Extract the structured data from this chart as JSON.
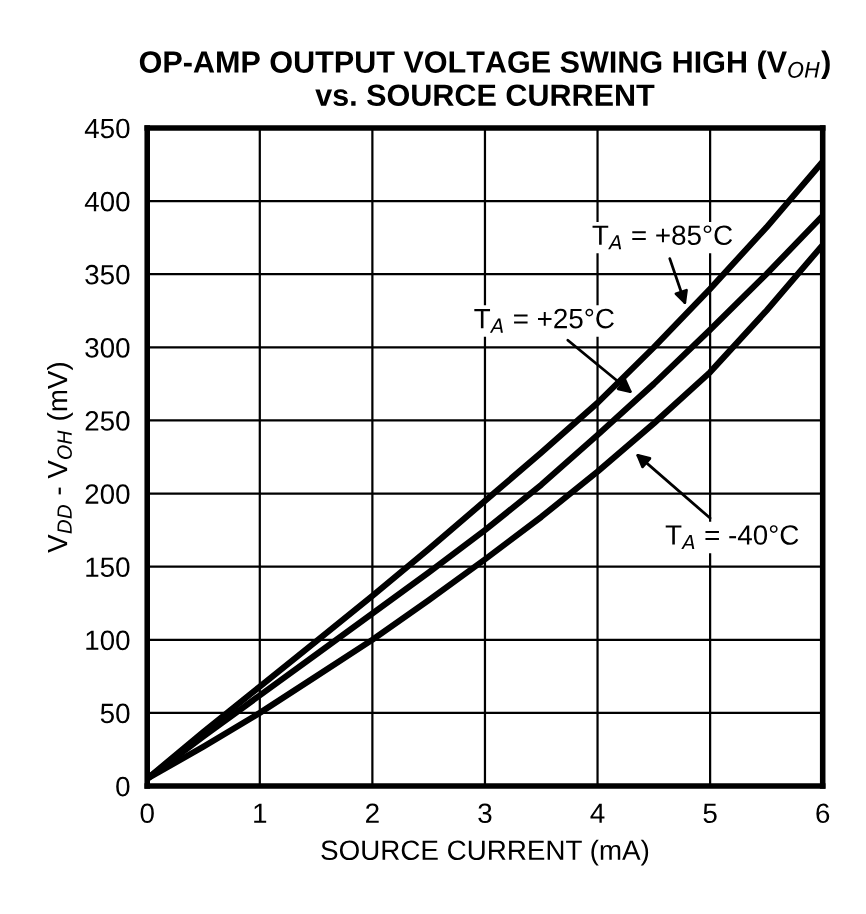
{
  "chart_data": {
    "type": "line",
    "title": "OP-AMP OUTPUT VOLTAGE SWING HIGH (V$_{OH}$)\nvs. SOURCE CURRENT",
    "xlabel": "SOURCE CURRENT (mA)",
    "ylabel": "V$_{DD}$ - V$_{OH}$ (mV)",
    "x": [
      0,
      0.5,
      1,
      1.5,
      2,
      2.5,
      3,
      3.5,
      4,
      4.5,
      5,
      5.5,
      6
    ],
    "series": [
      {
        "color": "#000000",
        "values": [
          5,
          37,
          68,
          99,
          130,
          162,
          195,
          228,
          262,
          300,
          340,
          382,
          427
        ]
      },
      {
        "color": "#000000",
        "values": [
          5,
          34,
          62,
          90,
          118,
          146,
          175,
          206,
          240,
          275,
          312,
          350,
          390
        ]
      },
      {
        "color": "#000000",
        "values": [
          5,
          27,
          50,
          75,
          100,
          127,
          155,
          184,
          215,
          248,
          283,
          325,
          370
        ]
      }
    ],
    "annotations": [
      {
        "text": "T$_{A}$ = +85°C",
        "x": 4.8,
        "y": 325
      },
      {
        "text": "T$_{A}$ = +25°C",
        "x": 4.35,
        "y": 266
      },
      {
        "text": "T$_{A}$ = -40°C",
        "x": 4.3,
        "y": 230
      }
    ],
    "xlim": [
      0,
      6
    ],
    "ylim": [
      0,
      450
    ],
    "xticks": [
      0,
      1,
      2,
      3,
      4,
      5,
      6
    ],
    "yticks": [
      0,
      50,
      100,
      150,
      200,
      250,
      300,
      350,
      400,
      450
    ],
    "grid": true,
    "line_style": "solid",
    "marker": "none"
  }
}
